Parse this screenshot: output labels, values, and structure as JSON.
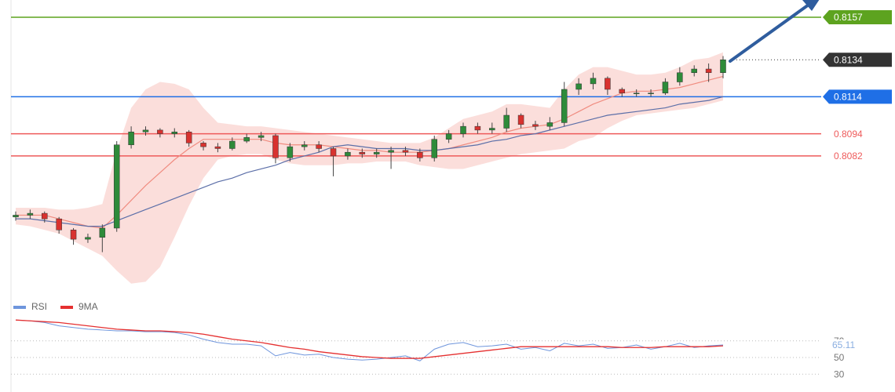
{
  "chart_data": [
    {
      "type": "candlestick",
      "ylim": [
        0.80095,
        0.81663
      ],
      "open": [
        0.8049,
        0.805,
        0.8051,
        0.8048,
        0.8042,
        0.8037,
        0.8038,
        0.8043,
        0.8088,
        0.8095,
        0.8096,
        0.8094,
        0.8095,
        0.8089,
        0.8087,
        0.8086,
        0.809,
        0.8092,
        0.8093,
        0.8081,
        0.8087,
        0.8088,
        0.8086,
        0.8082,
        0.8084,
        0.8083,
        0.8084,
        0.8085,
        0.8084,
        0.8081,
        0.8091,
        0.8094,
        0.8098,
        0.8096,
        0.8097,
        0.8104,
        0.8099,
        0.8098,
        0.81,
        0.8118,
        0.8121,
        0.8124,
        0.8118,
        0.8116,
        0.8116,
        0.8116,
        0.8122,
        0.8127,
        0.8129,
        0.8127
      ],
      "high": [
        0.8052,
        0.8053,
        0.8052,
        0.8049,
        0.8043,
        0.804,
        0.8045,
        0.809,
        0.8098,
        0.8098,
        0.8097,
        0.8097,
        0.8096,
        0.809,
        0.8089,
        0.8092,
        0.8094,
        0.8095,
        0.8094,
        0.8089,
        0.809,
        0.809,
        0.8087,
        0.8086,
        0.8086,
        0.8086,
        0.8087,
        0.8087,
        0.8086,
        0.8093,
        0.8096,
        0.81,
        0.81,
        0.81,
        0.8108,
        0.8105,
        0.8101,
        0.8103,
        0.8122,
        0.8124,
        0.8127,
        0.8125,
        0.8119,
        0.8118,
        0.8118,
        0.8124,
        0.813,
        0.8131,
        0.8132,
        0.8136
      ],
      "low": [
        0.8047,
        0.8048,
        0.8046,
        0.804,
        0.8034,
        0.8035,
        0.803,
        0.8041,
        0.8086,
        0.8093,
        0.8092,
        0.8092,
        0.8087,
        0.8085,
        0.8084,
        0.8085,
        0.8089,
        0.809,
        0.8078,
        0.8079,
        0.8085,
        0.8084,
        0.8071,
        0.808,
        0.8081,
        0.8081,
        0.8075,
        0.8082,
        0.8079,
        0.8079,
        0.8089,
        0.8092,
        0.8094,
        0.8094,
        0.8095,
        0.8097,
        0.8096,
        0.8096,
        0.8098,
        0.8115,
        0.8118,
        0.8115,
        0.8114,
        0.8114,
        0.8114,
        0.8115,
        0.812,
        0.8125,
        0.8122,
        0.8124
      ],
      "close": [
        0.805,
        0.8051,
        0.8048,
        0.8042,
        0.8037,
        0.8038,
        0.8043,
        0.8088,
        0.8095,
        0.8096,
        0.8094,
        0.8095,
        0.8089,
        0.8087,
        0.8086,
        0.809,
        0.8092,
        0.8093,
        0.8081,
        0.8087,
        0.8088,
        0.8086,
        0.8082,
        0.8084,
        0.8083,
        0.8084,
        0.8085,
        0.8084,
        0.8081,
        0.8091,
        0.8094,
        0.8098,
        0.8096,
        0.8097,
        0.8104,
        0.8099,
        0.8098,
        0.81,
        0.8118,
        0.8121,
        0.8124,
        0.8118,
        0.8116,
        0.8116,
        0.8116,
        0.8122,
        0.8127,
        0.8129,
        0.8127,
        0.8134
      ],
      "up_color": "#2e8b3a",
      "down_color": "#d8322f",
      "band_color": "#f9d3cf",
      "band_upper": [
        0.8054,
        0.8054,
        0.8054,
        0.8053,
        0.8053,
        0.8054,
        0.8056,
        0.8085,
        0.8108,
        0.8118,
        0.8122,
        0.8121,
        0.8118,
        0.8108,
        0.81,
        0.8099,
        0.8098,
        0.8098,
        0.8097,
        0.8096,
        0.8095,
        0.8094,
        0.8093,
        0.8092,
        0.8091,
        0.809,
        0.8089,
        0.8089,
        0.8089,
        0.8092,
        0.8097,
        0.8102,
        0.8104,
        0.8106,
        0.811,
        0.811,
        0.8109,
        0.8108,
        0.8118,
        0.8126,
        0.813,
        0.813,
        0.8128,
        0.8126,
        0.8126,
        0.8127,
        0.813,
        0.8134,
        0.8135,
        0.8138
      ],
      "band_lower": [
        0.8045,
        0.8044,
        0.8042,
        0.804,
        0.8036,
        0.8032,
        0.8028,
        0.802,
        0.8013,
        0.8014,
        0.8022,
        0.8038,
        0.8055,
        0.807,
        0.808,
        0.8082,
        0.8083,
        0.8083,
        0.808,
        0.8078,
        0.8077,
        0.8077,
        0.8077,
        0.8078,
        0.8078,
        0.8079,
        0.8079,
        0.8079,
        0.8077,
        0.8076,
        0.8075,
        0.8075,
        0.8077,
        0.8079,
        0.8081,
        0.8083,
        0.8084,
        0.8085,
        0.8086,
        0.809,
        0.8092,
        0.8097,
        0.8101,
        0.8104,
        0.8105,
        0.8106,
        0.8107,
        0.8108,
        0.811,
        0.8112
      ],
      "overlays": [
        {
          "color": "#f08c80",
          "values": [
            0.805,
            0.805,
            0.805,
            0.8048,
            0.8046,
            0.8044,
            0.8043,
            0.805,
            0.8058,
            0.8066,
            0.8073,
            0.808,
            0.8086,
            0.8091,
            0.8091,
            0.8091,
            0.8091,
            0.8091,
            0.8089,
            0.8088,
            0.8088,
            0.8088,
            0.8087,
            0.8086,
            0.8085,
            0.8085,
            0.8084,
            0.8084,
            0.8084,
            0.8085,
            0.8086,
            0.8088,
            0.809,
            0.8092,
            0.8095,
            0.8097,
            0.8098,
            0.8099,
            0.8102,
            0.8106,
            0.811,
            0.8113,
            0.8116,
            0.8117,
            0.8117,
            0.8118,
            0.8119,
            0.8121,
            0.8123,
            0.8125
          ]
        },
        {
          "color": "#5c6fa8",
          "values": [
            0.8048,
            0.8048,
            0.8047,
            0.8046,
            0.8045,
            0.8044,
            0.8044,
            0.8047,
            0.805,
            0.8053,
            0.8056,
            0.8059,
            0.8062,
            0.8065,
            0.8068,
            0.807,
            0.8073,
            0.8075,
            0.8077,
            0.808,
            0.8082,
            0.8084,
            0.8087,
            0.8088,
            0.8087,
            0.8086,
            0.8086,
            0.8086,
            0.8085,
            0.8085,
            0.8086,
            0.8087,
            0.8088,
            0.809,
            0.8091,
            0.8093,
            0.8094,
            0.8096,
            0.8098,
            0.81,
            0.8102,
            0.8104,
            0.8105,
            0.8106,
            0.8107,
            0.8108,
            0.811,
            0.8111,
            0.8112,
            0.8114
          ]
        }
      ],
      "levels": [
        {
          "value": 0.8157,
          "color": "#5da31f",
          "line": "solid",
          "tag": true
        },
        {
          "value": 0.8134,
          "color": "#333333",
          "line": "dotted",
          "tag": true
        },
        {
          "value": 0.8114,
          "color": "#1f6fe6",
          "line": "solid",
          "tag": true
        },
        {
          "value": 0.8094,
          "color": "#ee5a5a",
          "line": "solid",
          "tag": false
        },
        {
          "value": 0.8082,
          "color": "#ee5a5a",
          "line": "solid",
          "tag": false
        }
      ]
    },
    {
      "type": "line",
      "ylim": [
        18,
        98
      ],
      "yticks": [
        30,
        50,
        70
      ],
      "grid": true,
      "series": [
        {
          "name": "RSI",
          "color": "#6e95dc",
          "values": [
            95,
            94,
            92,
            88,
            86,
            84,
            83,
            82,
            82,
            81,
            81,
            80,
            77,
            72,
            68,
            66,
            66,
            64,
            52,
            56,
            53,
            54,
            50,
            48,
            47,
            48,
            50,
            52,
            46,
            60,
            66,
            68,
            63,
            64,
            66,
            60,
            62,
            58,
            67,
            64,
            66,
            61,
            62,
            65,
            60,
            63,
            67,
            62,
            64,
            65.11
          ]
        },
        {
          "name": "9MA",
          "color": "#e53030",
          "values": [
            95,
            94,
            93,
            92,
            90,
            88,
            86,
            84,
            83,
            82,
            82,
            81,
            80,
            78,
            75,
            72,
            70,
            68,
            65,
            62,
            60,
            57,
            55,
            53,
            51,
            50,
            49,
            49,
            49,
            51,
            53,
            55,
            57,
            59,
            61,
            63,
            63,
            63,
            63,
            63,
            63,
            63,
            62,
            62,
            62,
            63,
            63,
            63,
            63,
            64
          ]
        }
      ]
    }
  ]
}
